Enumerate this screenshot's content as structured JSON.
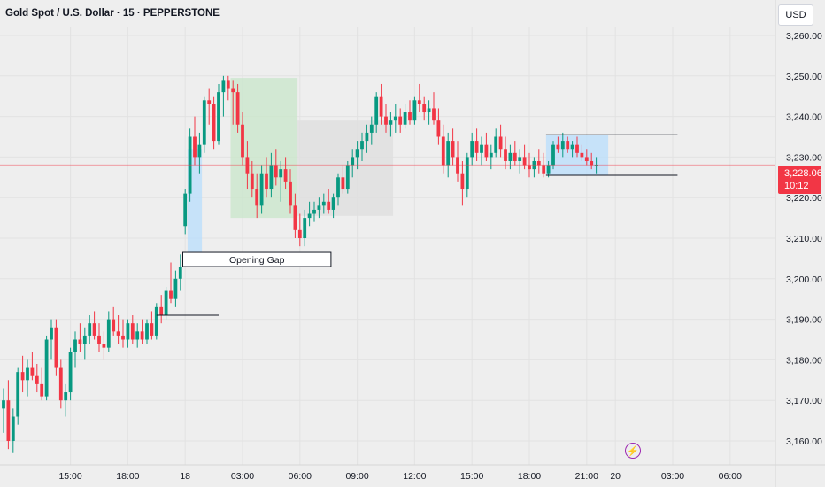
{
  "header": {
    "title": "Gold Spot / U.S. Dollar · 15 · PEPPERSTONE",
    "currency_label": "USD"
  },
  "price_badge": {
    "price": "3,228.06",
    "countdown": "10:12",
    "color": "#f23645"
  },
  "colors": {
    "up": "#089981",
    "down": "#f23645",
    "zone_blue": "#bbdefb",
    "zone_green": "#c8e6c9",
    "zone_gray": "#e0e0e0"
  },
  "events_icon": "lightning-icon",
  "chart_data": {
    "type": "candlestick",
    "title": "Gold Spot / U.S. Dollar · 15 · PEPPERSTONE",
    "x_ticks": [
      {
        "label": "15:00",
        "t": 14
      },
      {
        "label": "18:00",
        "t": 26
      },
      {
        "label": "18",
        "t": 38
      },
      {
        "label": "03:00",
        "t": 50
      },
      {
        "label": "06:00",
        "t": 62
      },
      {
        "label": "09:00",
        "t": 74
      },
      {
        "label": "12:00",
        "t": 86
      },
      {
        "label": "15:00",
        "t": 98
      },
      {
        "label": "18:00",
        "t": 110
      },
      {
        "label": "21:00",
        "t": 122
      },
      {
        "label": "20",
        "t": 128
      },
      {
        "label": "03:00",
        "t": 140
      },
      {
        "label": "06:00",
        "t": 152
      }
    ],
    "y_ticks": [
      3160,
      3170,
      3180,
      3190,
      3200,
      3210,
      3220,
      3230,
      3240,
      3250,
      3260
    ],
    "y_tick_labels": [
      "3,160.00",
      "3,170.00",
      "3,180.00",
      "3,190.00",
      "3,200.00",
      "3,210.00",
      "3,220.00",
      "3,230.00",
      "3,240.00",
      "3,250.00",
      "3,260.00"
    ],
    "ylim": [
      3157,
      3265
    ],
    "xlim": [
      0,
      160
    ],
    "current_price": 3228.06,
    "annotations": {
      "opening_gap_label": "Opening Gap",
      "opening_gap_box": {
        "t1": 37.5,
        "t2": 68.5,
        "y1": 3206.5,
        "y2": 3203.0
      },
      "gap_blue_zone": {
        "t1": 38.5,
        "t2": 41.5,
        "y1": 3232,
        "y2": 3206.5
      },
      "green_zone": {
        "t1": 47.5,
        "t2": 61.5,
        "y1": 3249.5,
        "y2": 3215
      },
      "gray_zone": {
        "t1": 61.5,
        "t2": 81.5,
        "y1": 3239,
        "y2": 3215.5
      },
      "range_box": {
        "t1": 113.5,
        "t2": 126.5,
        "y1": 3235.5,
        "y2": 3225.5
      },
      "range_top_line": {
        "t1": 113.5,
        "t2": 141,
        "y": 3235.5
      },
      "range_bottom_line": {
        "t1": 113.5,
        "t2": 141,
        "y": 3225.5
      },
      "support_line": {
        "t1": 32,
        "t2": 45,
        "y": 3191
      }
    },
    "candles": [
      [
        0,
        3168,
        3173,
        3162,
        3170
      ],
      [
        1,
        3170,
        3175,
        3158,
        3160
      ],
      [
        2,
        3160,
        3168,
        3157,
        3166
      ],
      [
        3,
        3166,
        3178,
        3164,
        3177
      ],
      [
        4,
        3177,
        3181,
        3172,
        3175
      ],
      [
        5,
        3175,
        3180,
        3171,
        3178
      ],
      [
        6,
        3178,
        3182,
        3175,
        3176
      ],
      [
        7,
        3176,
        3179,
        3172,
        3174
      ],
      [
        8,
        3174,
        3178,
        3170,
        3171
      ],
      [
        9,
        3171,
        3186,
        3170,
        3185
      ],
      [
        10,
        3185,
        3190,
        3180,
        3188
      ],
      [
        11,
        3188,
        3190,
        3176,
        3178
      ],
      [
        12,
        3178,
        3180,
        3168,
        3170
      ],
      [
        13,
        3170,
        3174,
        3166,
        3172
      ],
      [
        14,
        3172,
        3183,
        3170,
        3182
      ],
      [
        15,
        3182,
        3187,
        3178,
        3185
      ],
      [
        16,
        3185,
        3189,
        3182,
        3184
      ],
      [
        17,
        3184,
        3188,
        3180,
        3186
      ],
      [
        18,
        3186,
        3191,
        3184,
        3189
      ],
      [
        19,
        3189,
        3192,
        3185,
        3186
      ],
      [
        20,
        3186,
        3189,
        3182,
        3184
      ],
      [
        21,
        3184,
        3187,
        3180,
        3183
      ],
      [
        22,
        3183,
        3192,
        3182,
        3190
      ],
      [
        23,
        3190,
        3193,
        3186,
        3187
      ],
      [
        24,
        3187,
        3191,
        3184,
        3186
      ],
      [
        25,
        3186,
        3190,
        3183,
        3185
      ],
      [
        26,
        3185,
        3190,
        3183,
        3189
      ],
      [
        27,
        3189,
        3191,
        3184,
        3185
      ],
      [
        28,
        3185,
        3189,
        3183,
        3187
      ],
      [
        29,
        3187,
        3190,
        3184,
        3185
      ],
      [
        30,
        3185,
        3190,
        3184,
        3189
      ],
      [
        31,
        3189,
        3192,
        3185,
        3186
      ],
      [
        32,
        3186,
        3194,
        3185,
        3193
      ],
      [
        33,
        3193,
        3196,
        3189,
        3191
      ],
      [
        34,
        3191,
        3198,
        3190,
        3197
      ],
      [
        35,
        3197,
        3204,
        3194,
        3195
      ],
      [
        36,
        3195,
        3202,
        3193,
        3200
      ],
      [
        37,
        3200,
        3206,
        3197,
        3203
      ],
      [
        38,
        3213,
        3222,
        3211,
        3221
      ],
      [
        39,
        3221,
        3237,
        3219,
        3235
      ],
      [
        40,
        3235,
        3240,
        3228,
        3230
      ],
      [
        41,
        3230,
        3236,
        3226,
        3233
      ],
      [
        42,
        3233,
        3245,
        3231,
        3244
      ],
      [
        43,
        3244,
        3247,
        3238,
        3243
      ],
      [
        44,
        3243,
        3245,
        3232,
        3234
      ],
      [
        45,
        3234,
        3248,
        3233,
        3246
      ],
      [
        46,
        3246,
        3250,
        3240,
        3249
      ],
      [
        47,
        3249,
        3250,
        3244,
        3247
      ],
      [
        48,
        3247,
        3249,
        3238,
        3246
      ],
      [
        49,
        3246,
        3248,
        3236,
        3238
      ],
      [
        50,
        3238,
        3241,
        3228,
        3230
      ],
      [
        51,
        3230,
        3234,
        3222,
        3226
      ],
      [
        52,
        3226,
        3229,
        3220,
        3222
      ],
      [
        53,
        3222,
        3226,
        3215,
        3218
      ],
      [
        54,
        3218,
        3228,
        3216,
        3226
      ],
      [
        55,
        3226,
        3230,
        3220,
        3222
      ],
      [
        56,
        3222,
        3231,
        3220,
        3228
      ],
      [
        57,
        3228,
        3232,
        3223,
        3225
      ],
      [
        58,
        3225,
        3229,
        3219,
        3227
      ],
      [
        59,
        3227,
        3230,
        3222,
        3224
      ],
      [
        60,
        3224,
        3227,
        3216,
        3218
      ],
      [
        61,
        3218,
        3221,
        3210,
        3212
      ],
      [
        62,
        3212,
        3216,
        3208,
        3210
      ],
      [
        63,
        3210,
        3217,
        3208,
        3215
      ],
      [
        64,
        3215,
        3219,
        3213,
        3216
      ],
      [
        65,
        3216,
        3219,
        3214,
        3217
      ],
      [
        66,
        3217,
        3220,
        3215,
        3218
      ],
      [
        67,
        3218,
        3221,
        3216,
        3219
      ],
      [
        68,
        3219,
        3222,
        3216,
        3217
      ],
      [
        69,
        3217,
        3221,
        3215,
        3220
      ],
      [
        70,
        3220,
        3226,
        3218,
        3225
      ],
      [
        71,
        3225,
        3228,
        3221,
        3222
      ],
      [
        72,
        3222,
        3229,
        3221,
        3228
      ],
      [
        73,
        3228,
        3232,
        3225,
        3230
      ],
      [
        74,
        3230,
        3234,
        3227,
        3232
      ],
      [
        75,
        3232,
        3236,
        3229,
        3234
      ],
      [
        76,
        3234,
        3238,
        3231,
        3236
      ],
      [
        77,
        3236,
        3240,
        3233,
        3238
      ],
      [
        78,
        3238,
        3246,
        3236,
        3245
      ],
      [
        79,
        3245,
        3248,
        3238,
        3240
      ],
      [
        80,
        3240,
        3243,
        3236,
        3238
      ],
      [
        81,
        3238,
        3241,
        3235,
        3239
      ],
      [
        82,
        3239,
        3243,
        3236,
        3240
      ],
      [
        83,
        3240,
        3242,
        3236,
        3238
      ],
      [
        84,
        3238,
        3243,
        3237,
        3241
      ],
      [
        85,
        3241,
        3244,
        3238,
        3239
      ],
      [
        86,
        3239,
        3245,
        3238,
        3244
      ],
      [
        87,
        3244,
        3248,
        3241,
        3243
      ],
      [
        88,
        3243,
        3245,
        3239,
        3241
      ],
      [
        89,
        3241,
        3244,
        3238,
        3242
      ],
      [
        90,
        3242,
        3246,
        3238,
        3239
      ],
      [
        91,
        3239,
        3242,
        3233,
        3235
      ],
      [
        92,
        3235,
        3238,
        3226,
        3228
      ],
      [
        93,
        3228,
        3236,
        3225,
        3234
      ],
      [
        94,
        3234,
        3237,
        3228,
        3230
      ],
      [
        95,
        3230,
        3234,
        3224,
        3226
      ],
      [
        96,
        3226,
        3229,
        3218,
        3222
      ],
      [
        97,
        3222,
        3231,
        3220,
        3230
      ],
      [
        98,
        3230,
        3236,
        3228,
        3234
      ],
      [
        99,
        3234,
        3237,
        3229,
        3231
      ],
      [
        100,
        3231,
        3235,
        3228,
        3233
      ],
      [
        101,
        3233,
        3236,
        3229,
        3230
      ],
      [
        102,
        3230,
        3233,
        3227,
        3231
      ],
      [
        103,
        3231,
        3237,
        3230,
        3235
      ],
      [
        104,
        3235,
        3238,
        3230,
        3232
      ],
      [
        105,
        3232,
        3235,
        3227,
        3229
      ],
      [
        106,
        3229,
        3233,
        3227,
        3231
      ],
      [
        107,
        3231,
        3234,
        3228,
        3229
      ],
      [
        108,
        3229,
        3232,
        3226,
        3230
      ],
      [
        109,
        3230,
        3233,
        3227,
        3228
      ],
      [
        110,
        3228,
        3231,
        3225,
        3227
      ],
      [
        111,
        3227,
        3230,
        3225,
        3229
      ],
      [
        112,
        3229,
        3232,
        3226,
        3228
      ],
      [
        113,
        3228,
        3231,
        3225,
        3226
      ],
      [
        114,
        3226,
        3229,
        3225,
        3228
      ],
      [
        115,
        3228,
        3234,
        3227,
        3233
      ],
      [
        116,
        3233,
        3235,
        3231,
        3232
      ],
      [
        117,
        3232,
        3236,
        3230,
        3234
      ],
      [
        118,
        3234,
        3235,
        3231,
        3232
      ],
      [
        119,
        3232,
        3234,
        3230,
        3233
      ],
      [
        120,
        3233,
        3235,
        3230,
        3231
      ],
      [
        121,
        3231,
        3233,
        3229,
        3230
      ],
      [
        122,
        3230,
        3232,
        3228,
        3229
      ],
      [
        123,
        3229,
        3231,
        3227,
        3228
      ],
      [
        124,
        3228,
        3230,
        3226,
        3228.06
      ]
    ]
  }
}
